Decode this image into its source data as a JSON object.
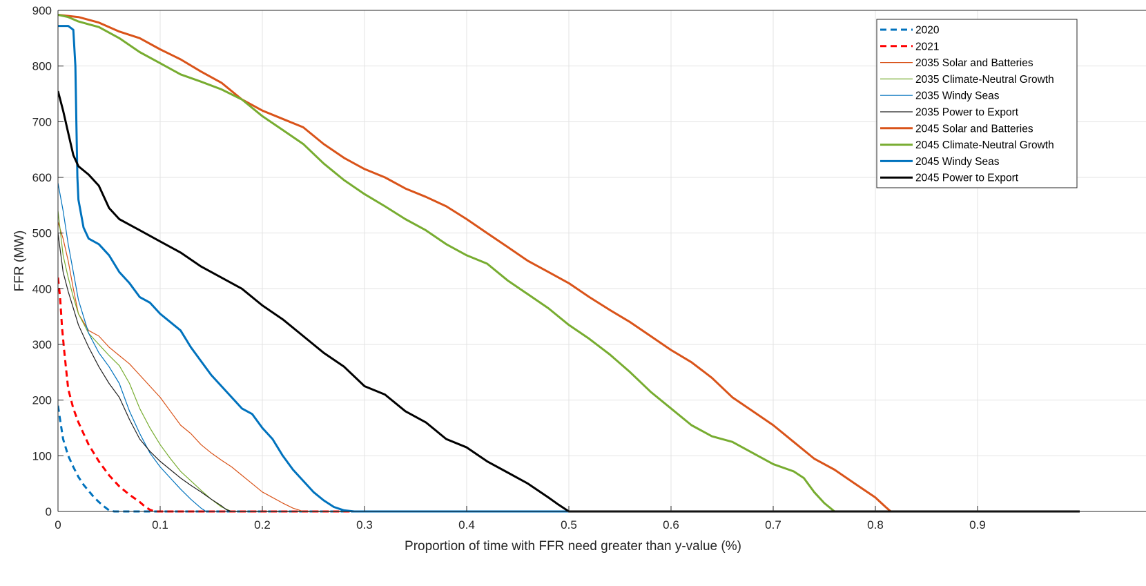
{
  "chart_data": {
    "type": "line",
    "title": "",
    "xlabel": "Proportion of time with FFR need greater than y-value (%)",
    "ylabel": "FFR (MW)",
    "xlim": [
      0,
      1
    ],
    "ylim": [
      0,
      900
    ],
    "xticks": [
      0,
      0.1,
      0.2,
      0.3,
      0.4,
      0.5,
      0.6,
      0.7,
      0.8,
      0.9
    ],
    "xtick_labels": [
      "0",
      "0.1",
      "0.2",
      "0.3",
      "0.4",
      "0.5",
      "0.6",
      "0.7",
      "0.8",
      "0.9"
    ],
    "yticks": [
      0,
      100,
      200,
      300,
      400,
      500,
      600,
      700,
      800,
      900
    ],
    "ytick_labels": [
      "0",
      "100",
      "200",
      "300",
      "400",
      "500",
      "600",
      "700",
      "800",
      "900"
    ],
    "grid": true,
    "legend_position": "top-right",
    "series": [
      {
        "name": "2020",
        "color": "#0072bd",
        "style": "dashed",
        "weight": "thick",
        "x": [
          0,
          0.002,
          0.005,
          0.01,
          0.015,
          0.02,
          0.025,
          0.03,
          0.035,
          0.04,
          0.045,
          0.05,
          0.055,
          1
        ],
        "y": [
          190,
          165,
          130,
          100,
          80,
          62,
          48,
          37,
          26,
          17,
          9,
          2,
          0,
          0
        ]
      },
      {
        "name": "2021",
        "color": "#ff0000",
        "style": "dashed",
        "weight": "thick",
        "x": [
          0,
          0.002,
          0.004,
          0.006,
          0.008,
          0.01,
          0.015,
          0.02,
          0.025,
          0.03,
          0.04,
          0.05,
          0.06,
          0.07,
          0.08,
          0.085,
          0.09,
          0.095,
          1
        ],
        "y": [
          420,
          385,
          330,
          290,
          255,
          220,
          185,
          160,
          140,
          120,
          90,
          65,
          45,
          30,
          17,
          9,
          3,
          0,
          0
        ]
      },
      {
        "name": "2035 Solar and Batteries",
        "color": "#d95319",
        "style": "solid",
        "weight": "thin",
        "x": [
          0,
          0.005,
          0.01,
          0.015,
          0.02,
          0.03,
          0.04,
          0.05,
          0.06,
          0.07,
          0.08,
          0.09,
          0.1,
          0.11,
          0.12,
          0.13,
          0.14,
          0.15,
          0.16,
          0.17,
          0.18,
          0.19,
          0.2,
          0.21,
          0.22,
          0.23,
          0.24,
          1
        ],
        "y": [
          520,
          490,
          450,
          400,
          355,
          325,
          315,
          295,
          280,
          265,
          245,
          225,
          205,
          180,
          155,
          140,
          120,
          105,
          92,
          80,
          65,
          50,
          35,
          25,
          15,
          6,
          0,
          0
        ]
      },
      {
        "name": "2035 Climate-Neutral Growth",
        "color": "#77ac30",
        "style": "solid",
        "weight": "thin",
        "x": [
          0,
          0.005,
          0.01,
          0.015,
          0.02,
          0.03,
          0.04,
          0.05,
          0.06,
          0.07,
          0.08,
          0.09,
          0.1,
          0.11,
          0.12,
          0.13,
          0.14,
          0.15,
          0.16,
          0.17,
          1
        ],
        "y": [
          540,
          460,
          420,
          385,
          355,
          320,
          300,
          280,
          262,
          230,
          185,
          150,
          120,
          95,
          72,
          55,
          38,
          22,
          8,
          0,
          0
        ]
      },
      {
        "name": "2035 Windy Seas",
        "color": "#0072bd",
        "style": "solid",
        "weight": "thin",
        "x": [
          0,
          0.005,
          0.01,
          0.015,
          0.02,
          0.025,
          0.03,
          0.04,
          0.05,
          0.06,
          0.07,
          0.08,
          0.09,
          0.1,
          0.11,
          0.12,
          0.13,
          0.14,
          0.145,
          1
        ],
        "y": [
          590,
          540,
          480,
          430,
          380,
          350,
          320,
          285,
          260,
          230,
          180,
          140,
          105,
          80,
          60,
          40,
          22,
          6,
          0,
          0
        ]
      },
      {
        "name": "2035 Power to Export",
        "color": "#202020",
        "style": "solid",
        "weight": "thin",
        "x": [
          0,
          0.005,
          0.01,
          0.015,
          0.02,
          0.03,
          0.04,
          0.05,
          0.06,
          0.07,
          0.08,
          0.09,
          0.1,
          0.11,
          0.12,
          0.13,
          0.14,
          0.15,
          0.16,
          0.165,
          0.17,
          1
        ],
        "y": [
          500,
          430,
          395,
          365,
          335,
          295,
          260,
          230,
          205,
          165,
          130,
          108,
          90,
          75,
          60,
          47,
          35,
          22,
          10,
          3,
          0,
          0
        ]
      },
      {
        "name": "2045 Solar and Batteries",
        "color": "#d95319",
        "style": "solid",
        "weight": "thick",
        "x": [
          0,
          0.02,
          0.04,
          0.05,
          0.06,
          0.08,
          0.1,
          0.12,
          0.14,
          0.16,
          0.18,
          0.2,
          0.22,
          0.24,
          0.26,
          0.28,
          0.3,
          0.32,
          0.34,
          0.36,
          0.38,
          0.4,
          0.42,
          0.44,
          0.46,
          0.48,
          0.5,
          0.52,
          0.54,
          0.56,
          0.58,
          0.6,
          0.62,
          0.64,
          0.66,
          0.68,
          0.7,
          0.72,
          0.74,
          0.76,
          0.78,
          0.8,
          0.81,
          0.815,
          1
        ],
        "y": [
          892,
          888,
          878,
          870,
          862,
          850,
          830,
          812,
          790,
          770,
          740,
          720,
          705,
          690,
          660,
          635,
          615,
          600,
          580,
          565,
          548,
          525,
          500,
          475,
          450,
          430,
          410,
          385,
          362,
          340,
          315,
          290,
          268,
          240,
          205,
          180,
          155,
          125,
          95,
          75,
          50,
          25,
          8,
          0,
          0
        ]
      },
      {
        "name": "2045 Climate-Neutral Growth",
        "color": "#77ac30",
        "style": "solid",
        "weight": "thick",
        "x": [
          0,
          0.01,
          0.02,
          0.04,
          0.06,
          0.08,
          0.1,
          0.12,
          0.14,
          0.16,
          0.18,
          0.2,
          0.22,
          0.24,
          0.26,
          0.28,
          0.3,
          0.32,
          0.34,
          0.36,
          0.38,
          0.4,
          0.42,
          0.44,
          0.46,
          0.48,
          0.5,
          0.52,
          0.54,
          0.56,
          0.58,
          0.6,
          0.62,
          0.64,
          0.66,
          0.68,
          0.7,
          0.72,
          0.73,
          0.74,
          0.75,
          0.76,
          1
        ],
        "y": [
          892,
          888,
          880,
          870,
          850,
          825,
          805,
          785,
          772,
          758,
          740,
          710,
          685,
          660,
          625,
          595,
          570,
          548,
          525,
          505,
          480,
          460,
          445,
          415,
          390,
          365,
          335,
          310,
          282,
          250,
          215,
          185,
          155,
          135,
          125,
          105,
          85,
          72,
          60,
          35,
          15,
          0,
          0
        ]
      },
      {
        "name": "2045 Windy Seas",
        "color": "#0072bd",
        "style": "solid",
        "weight": "thick",
        "x": [
          0,
          0.01,
          0.015,
          0.017,
          0.018,
          0.019,
          0.02,
          0.025,
          0.03,
          0.04,
          0.05,
          0.06,
          0.07,
          0.08,
          0.09,
          0.1,
          0.11,
          0.12,
          0.13,
          0.14,
          0.15,
          0.16,
          0.17,
          0.18,
          0.19,
          0.2,
          0.21,
          0.22,
          0.23,
          0.24,
          0.25,
          0.26,
          0.27,
          0.28,
          0.29,
          1
        ],
        "y": [
          872,
          872,
          865,
          800,
          700,
          600,
          560,
          510,
          490,
          480,
          460,
          430,
          410,
          385,
          375,
          355,
          340,
          325,
          295,
          270,
          245,
          225,
          205,
          185,
          175,
          150,
          130,
          100,
          75,
          55,
          35,
          20,
          8,
          2,
          0,
          0
        ]
      },
      {
        "name": "2045 Power to Export",
        "color": "#000000",
        "style": "solid",
        "weight": "thick",
        "x": [
          0,
          0.005,
          0.01,
          0.015,
          0.02,
          0.03,
          0.04,
          0.05,
          0.06,
          0.07,
          0.08,
          0.1,
          0.12,
          0.14,
          0.16,
          0.18,
          0.2,
          0.22,
          0.24,
          0.26,
          0.28,
          0.3,
          0.32,
          0.34,
          0.36,
          0.38,
          0.4,
          0.42,
          0.44,
          0.46,
          0.48,
          0.49,
          0.5,
          1
        ],
        "y": [
          755,
          720,
          680,
          640,
          620,
          605,
          585,
          545,
          525,
          515,
          505,
          485,
          465,
          440,
          420,
          400,
          370,
          345,
          315,
          285,
          260,
          225,
          210,
          180,
          160,
          130,
          115,
          90,
          70,
          50,
          25,
          12,
          0,
          0
        ]
      }
    ]
  }
}
